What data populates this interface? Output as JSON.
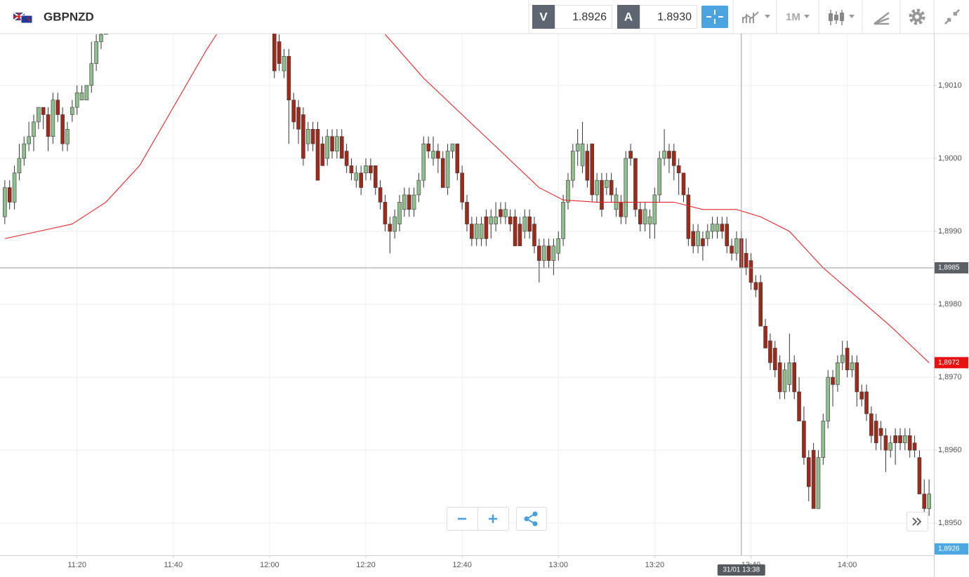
{
  "header": {
    "symbol": "GBPNZD",
    "sell": {
      "label": "V",
      "price": "1.8926"
    },
    "buy": {
      "label": "A",
      "price": "1.8930"
    },
    "timeframe": "1M"
  },
  "chart_data": {
    "type": "candlestick",
    "up_color": "#8fbe8c",
    "down_color": "#9e2a1c",
    "grid": true,
    "xlim": [
      "11:04",
      "14:18"
    ],
    "xticks": [
      "11:20",
      "11:40",
      "12:00",
      "12:20",
      "12:40",
      "13:00",
      "13:20",
      "13:40",
      "14:00"
    ],
    "ylim": [
      1.89456,
      1.90171
    ],
    "yticks": [
      {
        "value": 1.895,
        "label": "1,8950"
      },
      {
        "value": 1.896,
        "label": "1,8960"
      },
      {
        "value": 1.897,
        "label": "1,8970"
      },
      {
        "value": 1.898,
        "label": "1,8980"
      },
      {
        "value": 1.899,
        "label": "1,8990"
      },
      {
        "value": 1.9,
        "label": "1,9000"
      },
      {
        "value": 1.901,
        "label": "1,9010"
      }
    ],
    "x": [
      "11:05",
      "11:06",
      "11:07",
      "11:08",
      "11:09",
      "11:10",
      "11:11",
      "11:12",
      "11:13",
      "11:14",
      "11:15",
      "11:16",
      "11:17",
      "11:18",
      "11:19",
      "11:20",
      "11:21",
      "11:22",
      "11:23",
      "11:24",
      "11:25",
      "11:26",
      "12:01",
      "12:02",
      "12:03",
      "12:04",
      "12:05",
      "12:06",
      "12:07",
      "12:08",
      "12:09",
      "12:10",
      "12:11",
      "12:12",
      "12:13",
      "12:14",
      "12:15",
      "12:16",
      "12:17",
      "12:18",
      "12:19",
      "12:20",
      "12:21",
      "12:22",
      "12:23",
      "12:24",
      "12:25",
      "12:26",
      "12:27",
      "12:28",
      "12:29",
      "12:30",
      "12:31",
      "12:32",
      "12:33",
      "12:34",
      "12:35",
      "12:36",
      "12:37",
      "12:38",
      "12:39",
      "12:40",
      "12:41",
      "12:42",
      "12:43",
      "12:44",
      "12:45",
      "12:46",
      "12:47",
      "12:48",
      "12:49",
      "12:50",
      "12:51",
      "12:52",
      "12:53",
      "12:54",
      "12:55",
      "12:56",
      "12:57",
      "12:58",
      "12:59",
      "13:00",
      "13:01",
      "13:02",
      "13:03",
      "13:04",
      "13:05",
      "13:06",
      "13:07",
      "13:08",
      "13:09",
      "13:10",
      "13:11",
      "13:12",
      "13:13",
      "13:14",
      "13:15",
      "13:16",
      "13:17",
      "13:18",
      "13:19",
      "13:20",
      "13:21",
      "13:22",
      "13:23",
      "13:24",
      "13:25",
      "13:26",
      "13:27",
      "13:28",
      "13:29",
      "13:30",
      "13:31",
      "13:32",
      "13:33",
      "13:34",
      "13:35",
      "13:36",
      "13:37",
      "13:38",
      "13:39",
      "13:40",
      "13:41",
      "13:42",
      "13:43",
      "13:44",
      "13:45",
      "13:46",
      "13:47",
      "13:48",
      "13:49",
      "13:50",
      "13:51",
      "13:52",
      "13:53",
      "13:54",
      "13:55",
      "13:56",
      "13:57",
      "13:58",
      "13:59",
      "14:00",
      "14:01",
      "14:02",
      "14:03",
      "14:04",
      "14:05",
      "14:06",
      "14:07",
      "14:08",
      "14:09",
      "14:10",
      "14:11",
      "14:12",
      "14:13",
      "14:14",
      "14:15",
      "14:16",
      "14:17"
    ],
    "ohlc": [
      [
        1.8992,
        1.8997,
        1.8991,
        1.8996
      ],
      [
        1.8996,
        1.8997,
        1.8993,
        1.8994
      ],
      [
        1.8994,
        1.8999,
        1.8993,
        1.8998
      ],
      [
        1.8998,
        1.9002,
        1.8997,
        1.9
      ],
      [
        1.9,
        1.9003,
        1.8999,
        1.9002
      ],
      [
        1.9002,
        1.9005,
        1.9001,
        1.9003
      ],
      [
        1.9003,
        1.9006,
        1.9001,
        1.9005
      ],
      [
        1.9005,
        1.9007,
        1.9004,
        1.9007
      ],
      [
        1.9007,
        1.9007,
        1.9004,
        1.9006
      ],
      [
        1.9006,
        1.9007,
        1.9001,
        1.9003
      ],
      [
        1.9003,
        1.9009,
        1.9002,
        1.9008
      ],
      [
        1.9008,
        1.9009,
        1.9005,
        1.9006
      ],
      [
        1.9006,
        1.9007,
        1.9001,
        1.9002
      ],
      [
        1.9002,
        1.9005,
        1.9001,
        1.9004
      ],
      [
        1.9006,
        1.9008,
        1.9005,
        1.9007
      ],
      [
        1.9007,
        1.901,
        1.9006,
        1.9009
      ],
      [
        1.9008,
        1.901,
        1.9008,
        1.9009
      ],
      [
        1.9008,
        1.901,
        1.9008,
        1.901
      ],
      [
        1.901,
        1.9016,
        1.9009,
        1.9013
      ],
      [
        1.9013,
        1.9017,
        1.9012,
        1.9016
      ],
      [
        1.9016,
        1.9018,
        1.9015,
        1.9017
      ],
      [
        1.9017,
        1.9019,
        1.9017,
        1.9018
      ],
      [
        1.9018,
        1.9019,
        1.9011,
        1.9012
      ],
      [
        1.9016,
        1.9017,
        1.9012,
        1.9013
      ],
      [
        1.9012,
        1.9015,
        1.9011,
        1.9014
      ],
      [
        1.9014,
        1.9015,
        1.9002,
        1.9008
      ],
      [
        1.9008,
        1.9009,
        1.9004,
        1.9005
      ],
      [
        1.9007,
        1.9008,
        1.9002,
        1.9004
      ],
      [
        1.9006,
        1.9007,
        1.8999,
        1.9
      ],
      [
        1.9002,
        1.9005,
        1.9001,
        1.9004
      ],
      [
        1.9004,
        1.9005,
        1.9001,
        1.9002
      ],
      [
        1.9004,
        1.9005,
        1.8997,
        1.8997
      ],
      [
        1.9002,
        1.9003,
        1.8999,
        1.8999
      ],
      [
        1.9,
        1.9004,
        1.8999,
        1.9003
      ],
      [
        1.9003,
        1.9004,
        1.9,
        1.9001
      ],
      [
        1.9001,
        1.9004,
        1.9,
        1.9003
      ],
      [
        1.9003,
        1.9004,
        1.9,
        1.9
      ],
      [
        1.9001,
        1.9002,
        1.8998,
        1.8999
      ],
      [
        1.8999,
        1.9,
        1.8997,
        1.8998
      ],
      [
        1.8997,
        1.8999,
        1.8996,
        1.8998
      ],
      [
        1.8998,
        1.8999,
        1.8995,
        1.8996
      ],
      [
        1.8998,
        1.9,
        1.8997,
        1.8999
      ],
      [
        1.8999,
        1.9,
        1.8997,
        1.8998
      ],
      [
        1.8999,
        1.8999,
        1.8995,
        1.8996
      ],
      [
        1.8996,
        1.8997,
        1.8993,
        1.8994
      ],
      [
        1.8994,
        1.8995,
        1.899,
        1.8991
      ],
      [
        1.8991,
        1.8992,
        1.8987,
        1.899
      ],
      [
        1.899,
        1.8993,
        1.8989,
        1.8992
      ],
      [
        1.8991,
        1.8995,
        1.899,
        1.8994
      ],
      [
        1.8993,
        1.8996,
        1.8992,
        1.8995
      ],
      [
        1.8995,
        1.8996,
        1.8992,
        1.8993
      ],
      [
        1.8993,
        1.8996,
        1.8992,
        1.8995
      ],
      [
        1.8995,
        1.8998,
        1.8994,
        1.8997
      ],
      [
        1.8997,
        1.9003,
        1.8996,
        1.9002
      ],
      [
        1.9002,
        1.9003,
        1.9,
        1.9001
      ],
      [
        1.9,
        1.9003,
        1.8999,
        1.9001
      ],
      [
        1.9001,
        1.9002,
        1.8998,
        1.9
      ],
      [
        1.9,
        1.9001,
        1.8996,
        1.8996
      ],
      [
        1.8996,
        1.9002,
        1.8995,
        1.9001
      ],
      [
        1.9001,
        1.9002,
        1.9,
        1.9002
      ],
      [
        1.9002,
        1.9002,
        1.8997,
        1.8998
      ],
      [
        1.8998,
        1.8999,
        1.8993,
        1.8994
      ],
      [
        1.8994,
        1.8995,
        1.899,
        1.8991
      ],
      [
        1.8991,
        1.8992,
        1.8988,
        1.8989
      ],
      [
        1.8989,
        1.8992,
        1.8988,
        1.8991
      ],
      [
        1.8989,
        1.8992,
        1.8988,
        1.8991
      ],
      [
        1.8992,
        1.8993,
        1.8988,
        1.8989
      ],
      [
        1.8991,
        1.8993,
        1.8989,
        1.8992
      ],
      [
        1.8991,
        1.8994,
        1.899,
        1.8992
      ],
      [
        1.8993,
        1.8994,
        1.8991,
        1.8992
      ],
      [
        1.8992,
        1.8994,
        1.8991,
        1.8993
      ],
      [
        1.8992,
        1.8993,
        1.899,
        1.8991
      ],
      [
        1.8992,
        1.8993,
        1.8988,
        1.8988
      ],
      [
        1.8991,
        1.8992,
        1.8988,
        1.8988
      ],
      [
        1.899,
        1.8993,
        1.8989,
        1.8992
      ],
      [
        1.8992,
        1.8993,
        1.8989,
        1.899
      ],
      [
        1.8991,
        1.8992,
        1.8987,
        1.8988
      ],
      [
        1.8988,
        1.8989,
        1.8983,
        1.8986
      ],
      [
        1.8986,
        1.8989,
        1.8985,
        1.8988
      ],
      [
        1.8988,
        1.8989,
        1.8985,
        1.8986
      ],
      [
        1.8986,
        1.8989,
        1.8984,
        1.8988
      ],
      [
        1.8987,
        1.899,
        1.8986,
        1.8989
      ],
      [
        1.8989,
        1.8995,
        1.8988,
        1.8994
      ],
      [
        1.8994,
        1.8998,
        1.8993,
        1.8997
      ],
      [
        1.8997,
        1.9002,
        1.8996,
        1.9001
      ],
      [
        1.9001,
        1.9004,
        1.8999,
        1.9002
      ],
      [
        1.8999,
        1.9005,
        1.8998,
        1.9002
      ],
      [
        1.9001,
        1.9002,
        1.8996,
        1.8997
      ],
      [
        1.9002,
        1.9002,
        1.8994,
        1.8995
      ],
      [
        1.8995,
        1.8998,
        1.8994,
        1.8997
      ],
      [
        1.8997,
        1.8998,
        1.8992,
        1.8993
      ],
      [
        1.8996,
        1.8998,
        1.8995,
        1.8997
      ],
      [
        1.8997,
        1.8998,
        1.8994,
        1.8995
      ],
      [
        1.8993,
        1.8996,
        1.8992,
        1.8995
      ],
      [
        1.8994,
        1.8995,
        1.8991,
        1.8992
      ],
      [
        1.8992,
        1.9001,
        1.8991,
        1.9
      ],
      [
        1.9001,
        1.9002,
        1.8999,
        1.9
      ],
      [
        1.9,
        1.9,
        1.8992,
        1.8993
      ],
      [
        1.8993,
        1.8994,
        1.899,
        1.8991
      ],
      [
        1.8991,
        1.8994,
        1.899,
        1.8993
      ],
      [
        1.8991,
        1.8993,
        1.8989,
        1.8992
      ],
      [
        1.8991,
        1.8996,
        1.8989,
        1.8995
      ],
      [
        1.8995,
        1.9001,
        1.8994,
        1.9
      ],
      [
        1.9,
        1.9004,
        1.8999,
        1.9001
      ],
      [
        1.9001,
        1.9002,
        1.8998,
        1.9
      ],
      [
        1.9001,
        1.9002,
        1.8997,
        1.8999
      ],
      [
        1.8999,
        1.9,
        1.8995,
        1.8998
      ],
      [
        1.8998,
        1.8998,
        1.8994,
        1.8995
      ],
      [
        1.8995,
        1.8996,
        1.8988,
        1.8989
      ],
      [
        1.899,
        1.8991,
        1.8987,
        1.8988
      ],
      [
        1.8988,
        1.8991,
        1.8987,
        1.899
      ],
      [
        1.8989,
        1.899,
        1.8986,
        1.8988
      ],
      [
        1.8989,
        1.8991,
        1.8988,
        1.899
      ],
      [
        1.899,
        1.8992,
        1.8989,
        1.8991
      ],
      [
        1.899,
        1.8992,
        1.8989,
        1.8991
      ],
      [
        1.8991,
        1.8992,
        1.8989,
        1.899
      ],
      [
        1.8991,
        1.8992,
        1.8987,
        1.8988
      ],
      [
        1.8988,
        1.8989,
        1.8986,
        1.8987
      ],
      [
        1.8987,
        1.899,
        1.8986,
        1.8989
      ],
      [
        1.8989,
        1.899,
        1.8985,
        1.8985
      ],
      [
        1.8987,
        1.8989,
        1.8984,
        1.8985
      ],
      [
        1.8986,
        1.8987,
        1.8982,
        1.8983
      ],
      [
        1.8983,
        1.8984,
        1.8981,
        1.8982
      ],
      [
        1.8983,
        1.8984,
        1.8977,
        1.8977
      ],
      [
        1.8977,
        1.8978,
        1.8974,
        1.8974
      ],
      [
        1.8975,
        1.8976,
        1.8971,
        1.8972
      ],
      [
        1.8974,
        1.8975,
        1.897,
        1.8971
      ],
      [
        1.8972,
        1.8973,
        1.8967,
        1.8968
      ],
      [
        1.8968,
        1.8972,
        1.8967,
        1.8971
      ],
      [
        1.8969,
        1.8976,
        1.8968,
        1.8972
      ],
      [
        1.8972,
        1.8973,
        1.8967,
        1.8968
      ],
      [
        1.8968,
        1.897,
        1.8964,
        1.8964
      ],
      [
        1.8964,
        1.8966,
        1.8958,
        1.8959
      ],
      [
        1.8959,
        1.896,
        1.8953,
        1.8955
      ],
      [
        1.896,
        1.8961,
        1.8952,
        1.8952
      ],
      [
        1.8952,
        1.896,
        1.8952,
        1.8959
      ],
      [
        1.8959,
        1.8965,
        1.8958,
        1.8964
      ],
      [
        1.8964,
        1.8971,
        1.8963,
        1.897
      ],
      [
        1.897,
        1.8971,
        1.8966,
        1.8969
      ],
      [
        1.8969,
        1.8973,
        1.8968,
        1.8972
      ],
      [
        1.8972,
        1.8975,
        1.8971,
        1.8973
      ],
      [
        1.8974,
        1.8975,
        1.897,
        1.8971
      ],
      [
        1.8971,
        1.8973,
        1.897,
        1.8972
      ],
      [
        1.8972,
        1.8973,
        1.8966,
        1.8968
      ],
      [
        1.8968,
        1.8969,
        1.8966,
        1.8967
      ],
      [
        1.8968,
        1.8969,
        1.8964,
        1.8965
      ],
      [
        1.8965,
        1.8966,
        1.8961,
        1.8962
      ],
      [
        1.8964,
        1.8965,
        1.896,
        1.8961
      ],
      [
        1.8963,
        1.8964,
        1.896,
        1.8962
      ],
      [
        1.8962,
        1.8963,
        1.8957,
        1.896
      ],
      [
        1.896,
        1.8962,
        1.8959,
        1.8961
      ],
      [
        1.8962,
        1.8963,
        1.8958,
        1.8961
      ],
      [
        1.8962,
        1.8963,
        1.896,
        1.8961
      ],
      [
        1.8961,
        1.8963,
        1.896,
        1.8962
      ],
      [
        1.8962,
        1.8963,
        1.8959,
        1.896
      ],
      [
        1.8961,
        1.8962,
        1.8959,
        1.896
      ],
      [
        1.8959,
        1.896,
        1.8954,
        1.8954
      ],
      [
        1.8954,
        1.8956,
        1.8951,
        1.8952
      ],
      [
        1.8952,
        1.8956,
        1.8951,
        1.8954
      ]
    ],
    "ma": {
      "color": "#e3262a",
      "x": [
        "11:05",
        "11:12",
        "11:19",
        "11:26",
        "11:33",
        "11:40",
        "11:47",
        "11:49",
        "11:55",
        "12:24",
        "12:32",
        "12:40",
        "12:48",
        "12:56",
        "13:01",
        "13:08",
        "13:16",
        "13:24",
        "13:30",
        "13:37",
        "13:42",
        "13:48",
        "13:55",
        "14:02",
        "14:09",
        "14:17"
      ],
      "values": [
        1.8989,
        1.899,
        1.8991,
        1.8994,
        1.8999,
        1.9007,
        1.9015,
        1.9017,
        null,
        1.9017,
        1.9011,
        1.9006,
        1.9001,
        1.8996,
        1.89943,
        1.8994,
        1.8994,
        1.8994,
        1.8993,
        1.8993,
        1.8992,
        1.899,
        1.8985,
        1.8981,
        1.8977,
        1.8972
      ]
    },
    "crosshair": {
      "value": 1.8985,
      "label": "1,8985",
      "time_label": "31/01 13:38"
    },
    "ma_last": {
      "value": 1.8972,
      "label": "1,8972"
    },
    "bid_marker": {
      "value": 1.8926,
      "label": "1,8926"
    }
  }
}
